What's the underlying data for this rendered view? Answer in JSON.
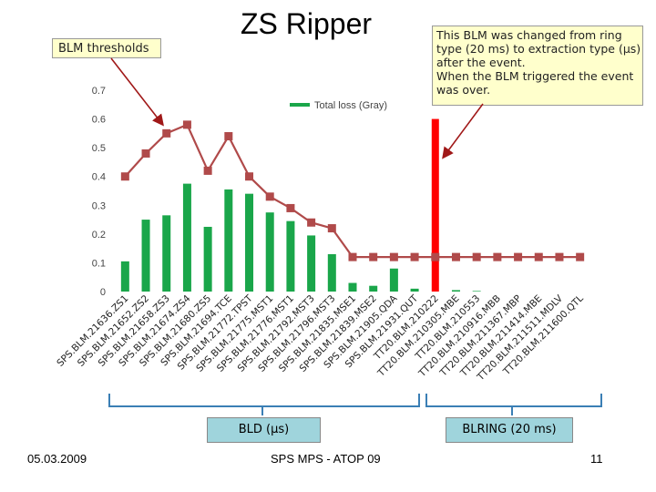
{
  "slide": {
    "title": "ZS Ripper",
    "note_thresholds": "BLM thresholds",
    "note_main": [
      "This BLM was changed from ring",
      "type (20 ms) to extraction type (μs)",
      "after the event.",
      "When the BLM triggered the event",
      "was over."
    ],
    "group_bld": "BLD (μs)",
    "group_blring": "BLRING (20 ms)",
    "footer_date": "05.03.2009",
    "footer_conf": "SPS MPS - ATOP 09",
    "footer_page": "11"
  },
  "colors": {
    "bar": "#1aa64a",
    "highlight_bar": "#ff0000",
    "threshold": "#b04a4a",
    "bracket": "#3b7fb5",
    "note_bg": "#ffffcc"
  },
  "chart_data": {
    "type": "bar",
    "categories": [
      "SPS.BLM.21636.ZS1",
      "SPS.BLM.21652.ZS2",
      "SPS.BLM.21658.ZS3",
      "SPS.BLM.21674.ZS4",
      "SPS.BLM.21680.ZS5",
      "SPS.BLM.21694.TCE",
      "SPS.BLM.21772.TPST",
      "SPS.BLM.21775.MST1",
      "SPS.BLM.21776.MST1",
      "SPS.BLM.21792.MST3",
      "SPS.BLM.21796.MST3",
      "SPS.BLM.21835.MSE1",
      "SPS.BLM.21839.MSE2",
      "SPS.BLM.21905.QDA",
      "SPS.BLM.21931.QUT",
      "TT20.BLM.210222",
      "TT20.BLM.210305.MBE",
      "TT20.BLM.210553",
      "TT20.BLM.210916.MBB",
      "TT20.BLM.211367.MBP",
      "TT20.BLM.211414.MBE",
      "TT20.BLM.211511.MDLV",
      "TT20.BLM.211600.QTL"
    ],
    "series": [
      {
        "name": "Total loss (Gray)",
        "values": [
          0.105,
          0.25,
          0.265,
          0.375,
          0.225,
          0.355,
          0.34,
          0.275,
          0.245,
          0.195,
          0.13,
          0.03,
          0.02,
          0.08,
          0.01,
          0.6,
          0.005,
          0.002,
          0,
          0,
          0,
          0,
          0
        ]
      },
      {
        "name": "BLM thresholds",
        "values": [
          0.4,
          0.48,
          0.55,
          0.58,
          0.42,
          0.54,
          0.4,
          0.33,
          0.29,
          0.24,
          0.22,
          0.12,
          0.12,
          0.12,
          0.12,
          0.12,
          0.12,
          0.12,
          0.12,
          0.12,
          0.12,
          0.12,
          0.12
        ]
      }
    ],
    "highlight_index": 15,
    "ylim": [
      0,
      0.7
    ],
    "yticks": [
      "0",
      "0.1",
      "0.2",
      "0.3",
      "0.4",
      "0.5",
      "0.6",
      "0.7"
    ],
    "legend_label": "Total loss (Gray)",
    "legend_position": "top-center",
    "grid": false
  }
}
